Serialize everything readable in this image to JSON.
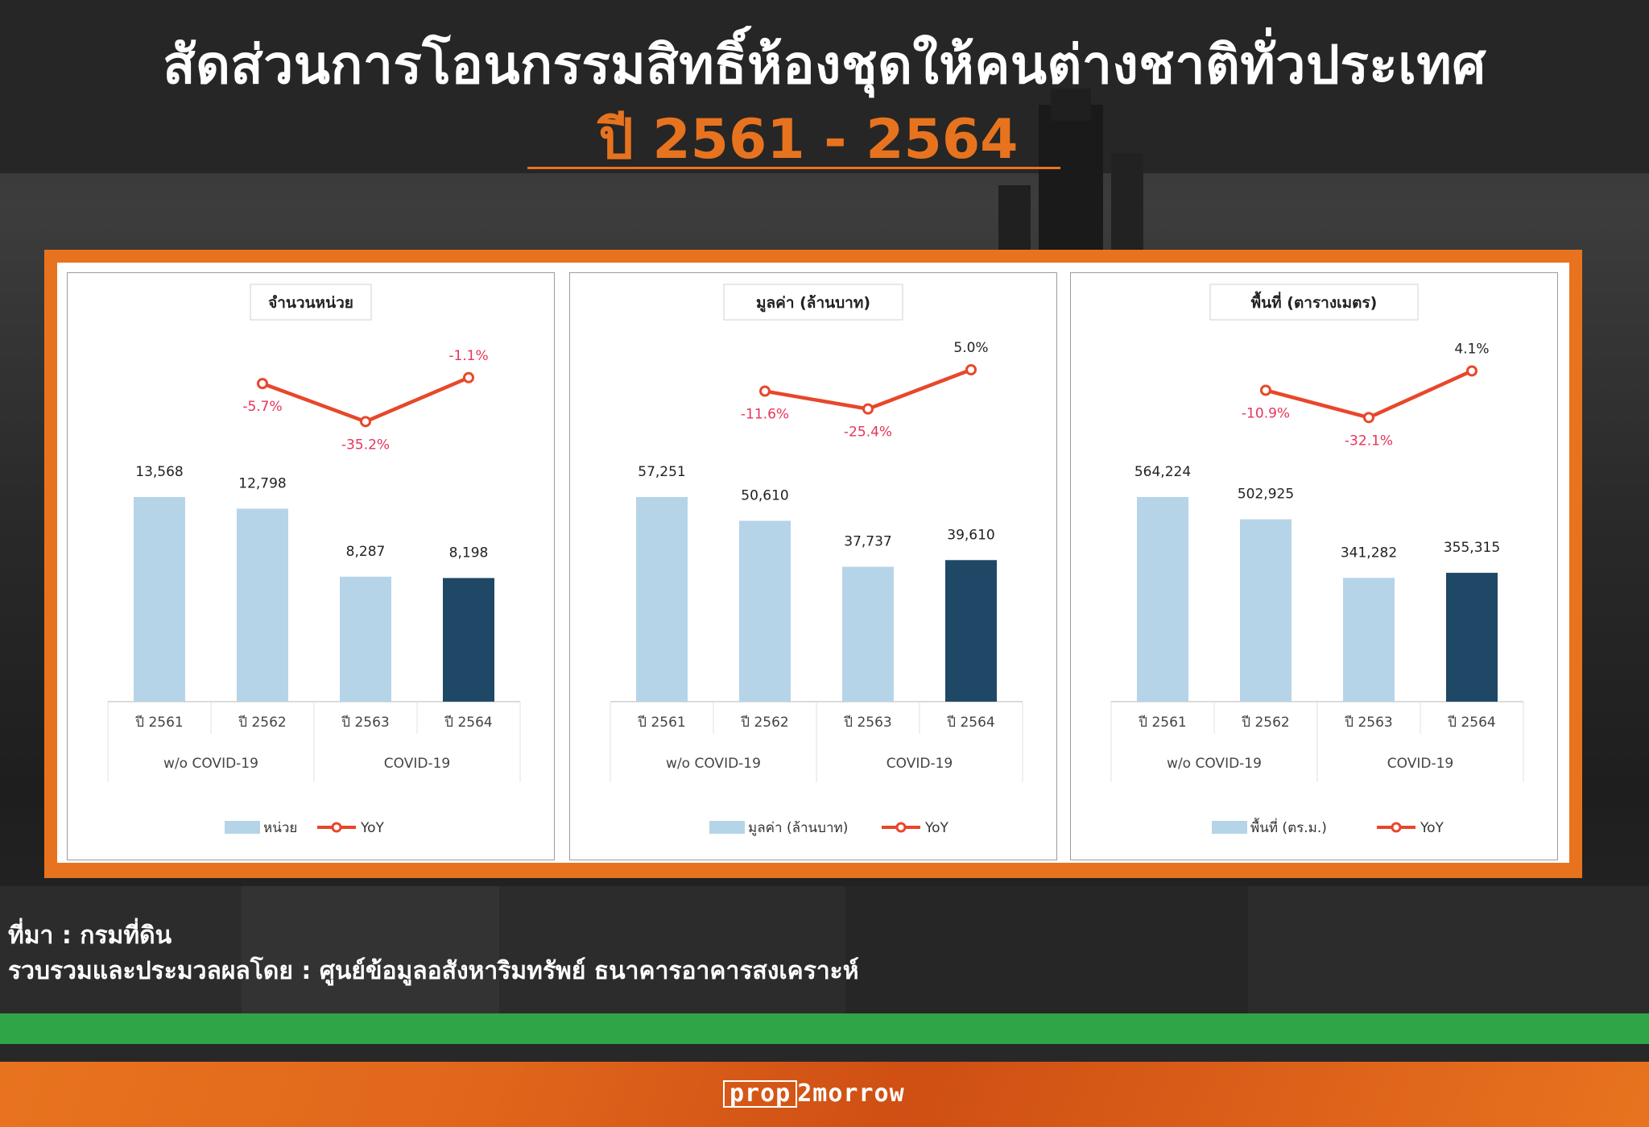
{
  "header": {
    "title": "สัดส่วนการโอนกรรมสิทธิ์ห้องชุดให้คนต่างชาติทั่วประเทศ",
    "subtitle": "ปี 2561 - 2564"
  },
  "footer": {
    "source": "ที่มา : กรมที่ดิน",
    "compiled_by": "รวบรวมและประมวลผลโดย : ศูนย์ข้อมูลอสังหาริมทรัพย์ ธนาคารอาคารสงเคราะห์",
    "logo_prefix": "prop",
    "logo_suffix": "2morrow"
  },
  "colors": {
    "accent": "#e8731f",
    "bar_light": "#b6d4e8",
    "bar_dark": "#1f4866",
    "yoy_line": "#e8472a",
    "yoy_label": "#e8335a",
    "green": "#2fa548"
  },
  "chart_data": [
    {
      "type": "bar",
      "title": "จำนวนหน่วย",
      "categories": [
        "ปี 2561",
        "ปี 2562",
        "ปี 2563",
        "ปี 2564"
      ],
      "groups": [
        {
          "label": "w/o COVID-19",
          "span": 2
        },
        {
          "label": "COVID-19",
          "span": 2
        }
      ],
      "series": [
        {
          "name": "หน่วย",
          "values": [
            13568,
            12798,
            8287,
            8198
          ],
          "labels": [
            "13,568",
            "12,798",
            "8,287",
            "8,198"
          ],
          "highlight_last": true
        },
        {
          "name": "YoY",
          "type": "line",
          "x": [
            "ปี 2562",
            "ปี 2563",
            "ปี 2564"
          ],
          "values": [
            -5.7,
            -35.2,
            -1.1
          ],
          "labels": [
            "-5.7%",
            "-35.2%",
            "-1.1%"
          ]
        }
      ]
    },
    {
      "type": "bar",
      "title": "มูลค่า (ล้านบาท)",
      "categories": [
        "ปี 2561",
        "ปี 2562",
        "ปี 2563",
        "ปี 2564"
      ],
      "groups": [
        {
          "label": "w/o COVID-19",
          "span": 2
        },
        {
          "label": "COVID-19",
          "span": 2
        }
      ],
      "series": [
        {
          "name": "มูลค่า (ล้านบาท)",
          "values": [
            57251,
            50610,
            37737,
            39610
          ],
          "labels": [
            "57,251",
            "50,610",
            "37,737",
            "39,610"
          ],
          "highlight_last": true
        },
        {
          "name": "YoY",
          "type": "line",
          "x": [
            "ปี 2562",
            "ปี 2563",
            "ปี 2564"
          ],
          "values": [
            -11.6,
            -25.4,
            5.0
          ],
          "labels": [
            "-11.6%",
            "-25.4%",
            "5.0%"
          ]
        }
      ]
    },
    {
      "type": "bar",
      "title": "พื้นที่ (ตารางเมตร)",
      "categories": [
        "ปี 2561",
        "ปี 2562",
        "ปี 2563",
        "ปี 2564"
      ],
      "groups": [
        {
          "label": "w/o COVID-19",
          "span": 2
        },
        {
          "label": "COVID-19",
          "span": 2
        }
      ],
      "series": [
        {
          "name": "พื้นที่ (ตร.ม.)",
          "values": [
            564224,
            502925,
            341282,
            355315
          ],
          "labels": [
            "564,224",
            "502,925",
            "341,282",
            "355,315"
          ],
          "highlight_last": true
        },
        {
          "name": "YoY",
          "type": "line",
          "x": [
            "ปี 2562",
            "ปี 2563",
            "ปี 2564"
          ],
          "values": [
            -10.9,
            -32.1,
            4.1
          ],
          "labels": [
            "-10.9%",
            "-32.1%",
            "4.1%"
          ]
        }
      ]
    }
  ]
}
